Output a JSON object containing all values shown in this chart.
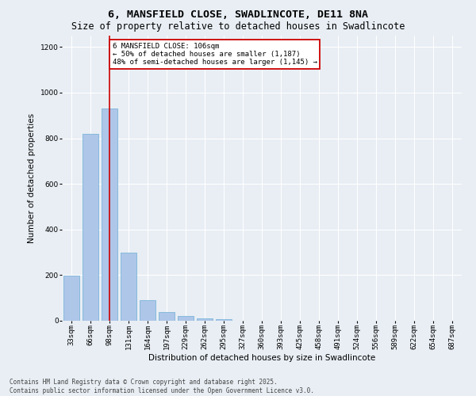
{
  "title_line1": "6, MANSFIELD CLOSE, SWADLINCOTE, DE11 8NA",
  "title_line2": "Size of property relative to detached houses in Swadlincote",
  "xlabel": "Distribution of detached houses by size in Swadlincote",
  "ylabel": "Number of detached properties",
  "categories": [
    "33sqm",
    "66sqm",
    "98sqm",
    "131sqm",
    "164sqm",
    "197sqm",
    "229sqm",
    "262sqm",
    "295sqm",
    "327sqm",
    "360sqm",
    "393sqm",
    "425sqm",
    "458sqm",
    "491sqm",
    "524sqm",
    "556sqm",
    "589sqm",
    "622sqm",
    "654sqm",
    "687sqm"
  ],
  "values": [
    197,
    820,
    930,
    300,
    90,
    38,
    22,
    12,
    7,
    0,
    0,
    0,
    0,
    0,
    0,
    0,
    0,
    0,
    0,
    0,
    0
  ],
  "bar_color": "#aec6e8",
  "bar_edge_color": "#6aafd6",
  "vline_x": 2,
  "vline_color": "#cc0000",
  "annotation_box_text": "6 MANSFIELD CLOSE: 106sqm\n← 50% of detached houses are smaller (1,187)\n48% of semi-detached houses are larger (1,145) →",
  "ylim": [
    0,
    1250
  ],
  "yticks": [
    0,
    200,
    400,
    600,
    800,
    1000,
    1200
  ],
  "background_color": "#e8eef4",
  "plot_bg_color": "#e8eef4",
  "grid_color": "#ffffff",
  "footer_line1": "Contains HM Land Registry data © Crown copyright and database right 2025.",
  "footer_line2": "Contains public sector information licensed under the Open Government Licence v3.0.",
  "title_fontsize": 9.5,
  "subtitle_fontsize": 8.5,
  "axis_label_fontsize": 7.5,
  "tick_fontsize": 6.5,
  "annotation_fontsize": 6.5,
  "footer_fontsize": 5.5
}
